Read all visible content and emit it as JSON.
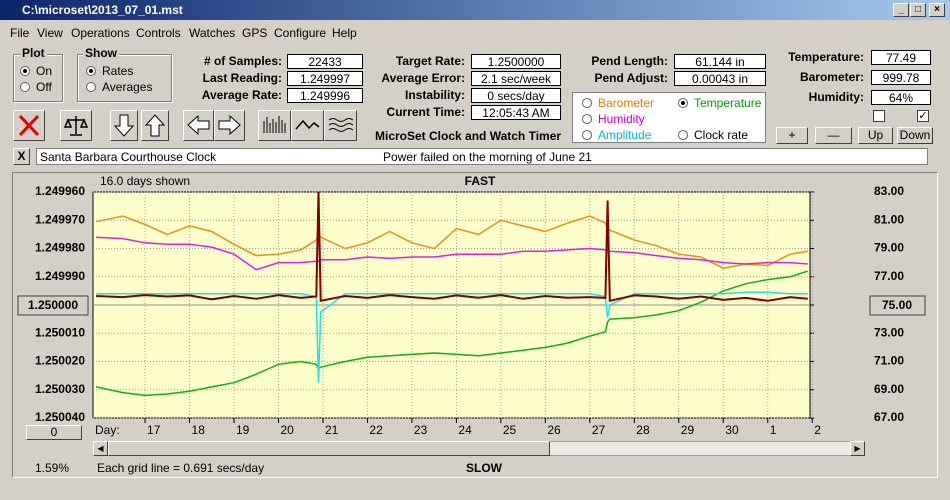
{
  "window": {
    "title": "C:\\microset\\2013_07_01.mst"
  },
  "menu": [
    "File",
    "View",
    "Operations",
    "Controls",
    "Watches",
    "GPS",
    "Configure",
    "Help"
  ],
  "plot": {
    "title": "Plot",
    "options": [
      {
        "label": "On",
        "checked": true
      },
      {
        "label": "Off",
        "checked": false
      }
    ]
  },
  "show": {
    "title": "Show",
    "options": [
      {
        "label": "Rates",
        "checked": true
      },
      {
        "label": "Averages",
        "checked": false
      }
    ]
  },
  "stats": [
    {
      "label": "# of Samples:",
      "value": "22433"
    },
    {
      "label": "Last Reading:",
      "value": "1.249997"
    },
    {
      "label": "Average Rate:",
      "value": "1.249996"
    }
  ],
  "rates": [
    {
      "label": "Target Rate:",
      "value": "1.2500000"
    },
    {
      "label": "Average Error:",
      "value": "2.1 sec/week"
    },
    {
      "label": "Instability:",
      "value": "0 secs/day"
    },
    {
      "label": "Current Time:",
      "value": "12:05:43 AM"
    }
  ],
  "app_title": "MicroSet Clock and Watch Timer",
  "pendulum": [
    {
      "label": "Pend Length:",
      "value": "61.144 in"
    },
    {
      "label": "Pend Adjust:",
      "value": "0.00043 in"
    }
  ],
  "plot_options": [
    {
      "label": "Barometer",
      "checked": false,
      "color": "#e08000"
    },
    {
      "label": "Temperature",
      "checked": true,
      "color": "#009900"
    },
    {
      "label": "Humidity",
      "checked": false,
      "color": "#cc00cc"
    },
    {
      "label": "Amplitude",
      "checked": false,
      "color": "#00b8e0"
    },
    {
      "label": "Clock rate",
      "checked": false,
      "color": "#000000"
    }
  ],
  "environment": [
    {
      "label": "Temperature:",
      "value": "77.49"
    },
    {
      "label": "Barometer:",
      "value": "999.78"
    },
    {
      "label": "Humidity:",
      "value": "64%"
    }
  ],
  "checkboxes": [
    false,
    true
  ],
  "scale_buttons": [
    "+",
    "—",
    "Up",
    "Down"
  ],
  "close_button": "X",
  "clock_name": "Santa Barbara Courthouse Clock",
  "note": "Power failed on the morning of June 21",
  "chart": {
    "type": "line",
    "top_label": "FAST",
    "bottom_label": "SLOW",
    "days_shown": "16.0 days shown",
    "grid_note": "Each grid line = 0.691 secs/day",
    "percent": "1.59%",
    "offset_button": "0",
    "x_label": "Day:",
    "background": "#ffffcc",
    "grid": true,
    "xlim": [
      15.83,
      31.95
    ],
    "xticks": [
      17,
      18,
      19,
      20,
      21,
      22,
      23,
      24,
      25,
      26,
      27,
      28,
      29,
      30,
      {
        "value": 31,
        "label": "1"
      },
      {
        "value": 32,
        "label": "2"
      }
    ],
    "ylim": [
      1.24996,
      1.25004
    ],
    "y_inverted": true,
    "yticks": [
      {
        "value": 1.24996,
        "label": "1.249960"
      },
      {
        "value": 1.24997,
        "label": "1.249970"
      },
      {
        "value": 1.24998,
        "label": "1.249980"
      },
      {
        "value": 1.24999,
        "label": "1.249990"
      },
      {
        "value": 1.25,
        "label": "1.250000"
      },
      {
        "value": 1.25001,
        "label": "1.250010"
      },
      {
        "value": 1.25002,
        "label": "1.250020"
      },
      {
        "value": 1.25003,
        "label": "1.250030"
      },
      {
        "value": 1.25004,
        "label": "1.250040"
      }
    ],
    "y2lim": [
      67,
      83
    ],
    "y2ticks": [
      {
        "value": 83,
        "label": "83.00"
      },
      {
        "value": 81,
        "label": "81.00"
      },
      {
        "value": 79,
        "label": "79.00"
      },
      {
        "value": 77,
        "label": "77.00"
      },
      {
        "value": 75,
        "label": "75.00"
      },
      {
        "value": 73,
        "label": "73.00"
      },
      {
        "value": 71,
        "label": "71.00"
      },
      {
        "value": 69,
        "label": "69.00"
      },
      {
        "value": 67,
        "label": "67.00"
      }
    ],
    "x": [
      15.9,
      16.5,
      17,
      17.5,
      18,
      18.5,
      19,
      19.5,
      20,
      20.5,
      20.85,
      20.9,
      20.95,
      21.5,
      22,
      22.5,
      23,
      23.5,
      24,
      24.5,
      25,
      25.5,
      26,
      26.5,
      27,
      27.35,
      27.4,
      27.45,
      28,
      28.5,
      29,
      29.5,
      30,
      30.5,
      31,
      31.5,
      31.9
    ],
    "series": [
      {
        "color": "#e8901a",
        "axis": "y2",
        "values": [
          80.9,
          81.3,
          80.7,
          80.0,
          80.6,
          80.2,
          79.3,
          78.5,
          78.6,
          78.9,
          79.6,
          80.0,
          79.8,
          79.0,
          79.4,
          80.2,
          79.4,
          79.0,
          80.4,
          80.0,
          81.0,
          80.6,
          80.2,
          80.8,
          81.3,
          80.8,
          80.5,
          80.3,
          79.6,
          79.2,
          78.6,
          78.4,
          77.6,
          77.9,
          77.8,
          78.6,
          78.8
        ]
      },
      {
        "color": "#e020e0",
        "axis": "y2",
        "values": [
          79.8,
          79.7,
          79.4,
          79.3,
          79.3,
          79.1,
          78.6,
          77.5,
          78.0,
          78.0,
          78.1,
          78.1,
          78.2,
          78.2,
          78.4,
          78.3,
          78.4,
          78.4,
          78.6,
          78.6,
          78.6,
          78.8,
          78.8,
          78.9,
          79.0,
          78.9,
          78.8,
          78.8,
          78.7,
          78.5,
          78.3,
          78.2,
          78.0,
          77.9,
          78.0,
          78.0,
          77.9
        ]
      },
      {
        "color": "#10b010",
        "axis": "y2",
        "values": [
          69.2,
          68.8,
          68.6,
          68.7,
          68.9,
          69.2,
          69.5,
          70.1,
          70.8,
          71.0,
          70.8,
          70.5,
          70.6,
          71.0,
          71.3,
          71.4,
          71.5,
          71.6,
          71.5,
          71.4,
          71.6,
          71.8,
          72.0,
          72.3,
          72.8,
          73.1,
          73.8,
          74.0,
          74.1,
          74.3,
          74.6,
          75.2,
          76.0,
          76.5,
          76.8,
          77.0,
          77.4
        ]
      },
      {
        "color": "#20e0e8",
        "axis": "y2",
        "values": [
          75.8,
          75.8,
          75.8,
          75.8,
          75.8,
          75.8,
          75.8,
          75.8,
          75.8,
          75.8,
          75.6,
          69.5,
          74.5,
          75.8,
          75.8,
          75.8,
          75.8,
          75.8,
          75.8,
          75.8,
          75.8,
          75.8,
          75.8,
          75.8,
          75.8,
          75.6,
          74.1,
          75.0,
          75.8,
          75.8,
          75.8,
          75.8,
          75.8,
          75.9,
          75.9,
          75.8,
          75.8
        ]
      },
      {
        "color": "#800000",
        "axis": "y",
        "values": [
          1.2499968,
          1.2499972,
          1.2499965,
          1.249997,
          1.2499966,
          1.249998,
          1.2499968,
          1.2499978,
          1.2499965,
          1.2499975,
          1.249997,
          1.24996,
          1.2499985,
          1.2499968,
          1.2499975,
          1.2499965,
          1.2499972,
          1.2499978,
          1.2499966,
          1.2499974,
          1.2499965,
          1.2499978,
          1.2499968,
          1.2499974,
          1.2499972,
          1.2499975,
          1.249963,
          1.2499985,
          1.2499966,
          1.249997,
          1.2499978,
          1.249997,
          1.2499982,
          1.2499975,
          1.2499985,
          1.2499972,
          1.2499978
        ]
      }
    ]
  }
}
